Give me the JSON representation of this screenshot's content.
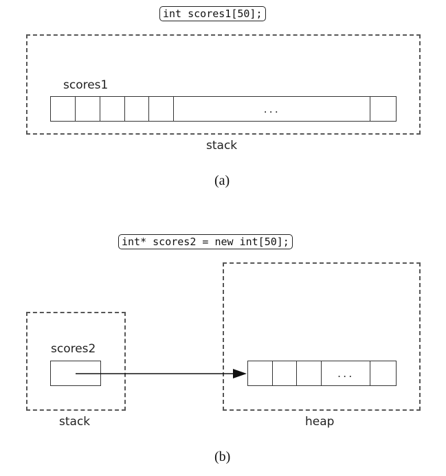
{
  "panel_a": {
    "code": "int scores1[50];",
    "variable": "scores1",
    "ellipsis": "...",
    "region": "stack",
    "caption": "(a)"
  },
  "panel_b": {
    "code": "int* scores2 = new int[50];",
    "pointer_variable": "scores2",
    "stack_region": "stack",
    "heap_region": "heap",
    "ellipsis": "...",
    "caption": "(b)"
  }
}
